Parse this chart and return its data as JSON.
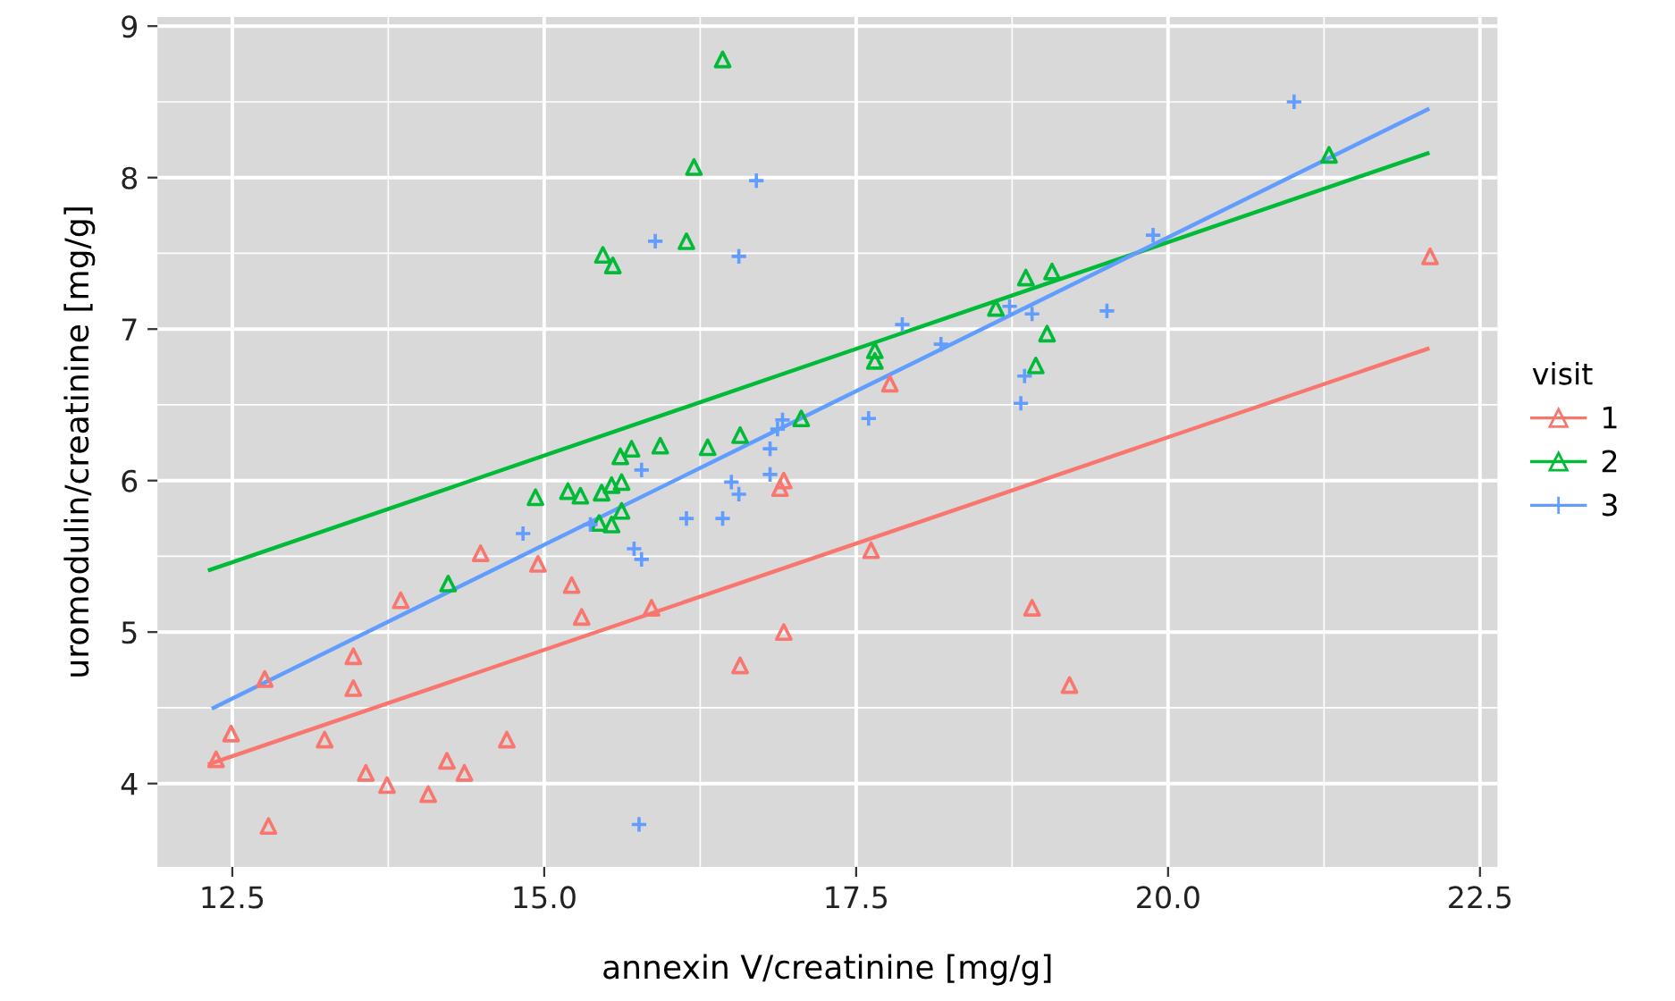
{
  "chart_data": {
    "type": "scatter",
    "xlabel": "annexin V/creatinine [mg/g]",
    "ylabel": "uromodulin/creatinine [mg/g]",
    "legend_title": "visit",
    "legend": "right",
    "grid": true,
    "xlim": [
      11.9,
      22.64
    ],
    "ylim": [
      3.45,
      9.06
    ],
    "xticks": [
      {
        "value": 12.5,
        "label": "12.5"
      },
      {
        "value": 15,
        "label": "15.0"
      },
      {
        "value": 17.5,
        "label": "17.5"
      },
      {
        "value": 20,
        "label": "20.0"
      },
      {
        "value": 22.5,
        "label": "22.5"
      }
    ],
    "yticks": [
      4,
      5,
      6,
      7,
      8,
      9
    ],
    "series": [
      {
        "name": "1",
        "marker": "triangle",
        "color": "#f8766d",
        "x": [
          12.37,
          12.49,
          12.76,
          12.79,
          13.24,
          13.47,
          13.47,
          13.57,
          13.74,
          13.85,
          14.07,
          14.22,
          14.36,
          14.49,
          14.7,
          14.95,
          15.22,
          15.3,
          15.86,
          16.57,
          16.92,
          16.92,
          16.89,
          17.62,
          17.77,
          18.91,
          19.21,
          22.1
        ],
        "values": [
          4.16,
          4.33,
          4.69,
          3.72,
          4.29,
          4.84,
          4.63,
          4.07,
          3.99,
          5.21,
          3.93,
          4.15,
          4.07,
          5.52,
          4.29,
          5.45,
          5.31,
          5.1,
          5.16,
          4.78,
          5.0,
          6.0,
          5.95,
          5.54,
          6.64,
          5.16,
          4.65,
          7.48
        ]
      },
      {
        "name": "2",
        "marker": "triangle",
        "color": "#00ba38",
        "x": [
          16.43,
          16.2,
          15.47,
          15.55,
          16.14,
          14.93,
          15.19,
          15.29,
          15.46,
          15.54,
          15.62,
          15.61,
          15.7,
          15.93,
          16.31,
          16.57,
          17.06,
          15.62,
          15.44,
          15.54,
          14.23,
          17.65,
          17.65,
          18.62,
          18.86,
          19.07,
          19.03,
          18.94,
          21.29
        ],
        "values": [
          8.78,
          8.07,
          7.49,
          7.42,
          7.58,
          5.89,
          5.93,
          5.9,
          5.92,
          5.97,
          5.99,
          6.16,
          6.21,
          6.23,
          6.22,
          6.3,
          6.41,
          5.8,
          5.72,
          5.71,
          5.32,
          6.86,
          6.79,
          7.14,
          7.34,
          7.38,
          6.97,
          6.76,
          8.15
        ]
      },
      {
        "name": "3",
        "marker": "cross",
        "color": "#619cff",
        "x": [
          16.7,
          15.89,
          16.56,
          14.83,
          15.76,
          15.78,
          15.37,
          15.72,
          15.78,
          16.14,
          16.43,
          16.5,
          16.56,
          16.81,
          16.81,
          16.87,
          16.91,
          17.6,
          17.87,
          18.18,
          18.82,
          18.85,
          18.73,
          18.91,
          19.51,
          19.88,
          21.01
        ],
        "values": [
          7.98,
          7.58,
          7.48,
          5.65,
          3.73,
          6.07,
          5.71,
          5.55,
          5.48,
          5.75,
          5.75,
          5.99,
          5.91,
          6.21,
          6.04,
          6.34,
          6.4,
          6.41,
          7.03,
          6.9,
          6.51,
          6.69,
          7.15,
          7.1,
          7.12,
          7.62,
          8.5
        ]
      },
      {
        "type": "line",
        "marker": "none",
        "color": "#f8766d",
        "x": [
          12.32,
          22.08
        ],
        "values": [
          4.13,
          6.87
        ]
      },
      {
        "type": "line",
        "marker": "none",
        "color": "#00ba38",
        "x": [
          12.32,
          22.08
        ],
        "values": [
          5.41,
          8.16
        ]
      },
      {
        "type": "line",
        "marker": "none",
        "color": "#619cff",
        "x": [
          12.35,
          22.08
        ],
        "values": [
          4.5,
          8.45
        ]
      }
    ]
  }
}
